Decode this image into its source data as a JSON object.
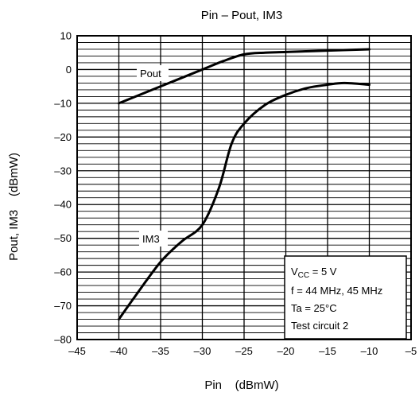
{
  "chart_data": {
    "type": "line",
    "title": "Pin – Pout, IM3",
    "xlabel": "Pin    (dBmW)",
    "ylabel": "Pout, IM3    (dBmW)",
    "xlim": [
      -45,
      -5
    ],
    "ylim": [
      -80,
      10
    ],
    "x_major_ticks": [
      -45,
      -40,
      -35,
      -30,
      -25,
      -20,
      -15,
      -10,
      -5
    ],
    "y_major_ticks": [
      10,
      0,
      -10,
      -20,
      -30,
      -40,
      -50,
      -60,
      -70,
      -80
    ],
    "x_tick_labels": [
      "–45",
      "–40",
      "–35",
      "–30",
      "–25",
      "–20",
      "–15",
      "–10",
      "–5"
    ],
    "y_tick_labels": [
      "10",
      "0",
      "–10",
      "–20",
      "–30",
      "–40",
      "–50",
      "–60",
      "–70",
      "–80"
    ],
    "grid": true,
    "series": [
      {
        "name": "Pout",
        "x": [
          -40,
          -35,
          -30,
          -27.5,
          -25,
          -22.5,
          -20,
          -15,
          -10
        ],
        "y": [
          -10,
          -5,
          0,
          2.5,
          4.5,
          5,
          5.2,
          5.6,
          6
        ]
      },
      {
        "name": "IM3",
        "x": [
          -40,
          -38,
          -35,
          -32.5,
          -30,
          -28,
          -26.5,
          -25,
          -22.5,
          -20,
          -17.5,
          -15,
          -13,
          -10
        ],
        "y": [
          -74,
          -67,
          -57,
          -51,
          -46,
          -35,
          -22,
          -16,
          -10.5,
          -7.5,
          -5.5,
          -4.5,
          -4,
          -4.5
        ]
      }
    ],
    "annotations": {
      "conditions": [
        "V_CC = 5 V",
        "f = 44 MHz, 45 MHz",
        "Ta = 25°C",
        "Test circuit 2"
      ],
      "vcc_main": "V",
      "vcc_sub": "CC",
      "vcc_rest": " = 5 V",
      "f": "f = 44 MHz, 45 MHz",
      "ta": "Ta = 25°C",
      "test": "Test circuit 2"
    }
  }
}
